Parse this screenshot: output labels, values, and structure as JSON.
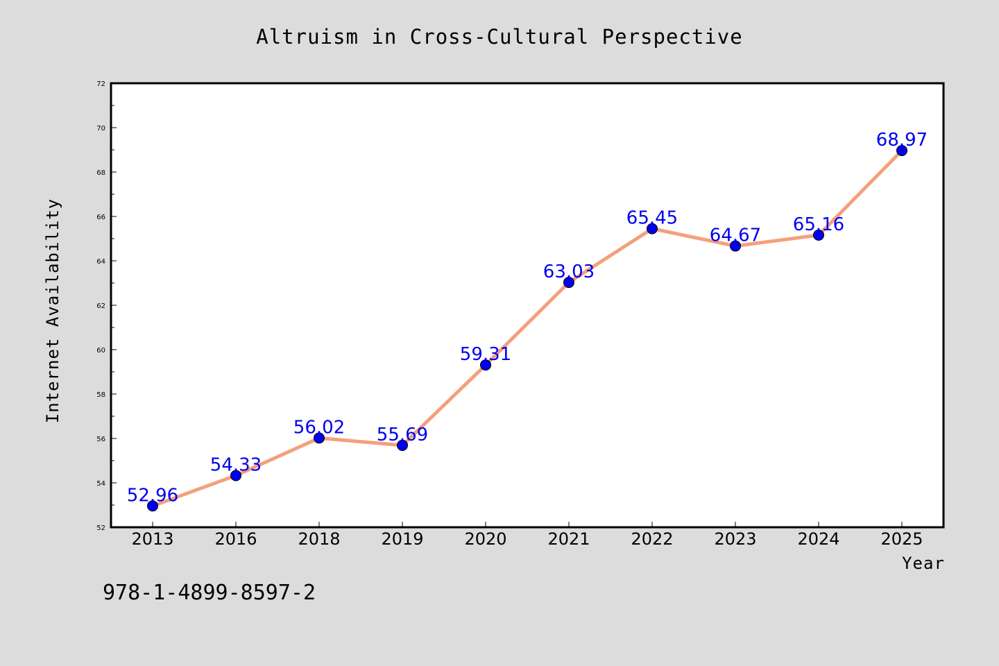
{
  "chart_data": {
    "type": "line",
    "title": "Altruism in Cross-Cultural Perspective",
    "xlabel": "Year",
    "ylabel": "Internet Availability",
    "categories": [
      "2013",
      "2016",
      "2018",
      "2019",
      "2020",
      "2021",
      "2022",
      "2023",
      "2024",
      "2025"
    ],
    "series": [
      {
        "values": [
          52.96,
          54.33,
          56.02,
          55.69,
          59.31,
          63.03,
          65.45,
          64.67,
          65.16,
          68.97
        ]
      }
    ],
    "data_labels": [
      "52.96",
      "54.33",
      "56.02",
      "55.69",
      "59.31",
      "63.03",
      "65.45",
      "64.67",
      "65.16",
      "68.97"
    ],
    "ylim": [
      52,
      72
    ],
    "yticks": [
      "52",
      "54",
      "56",
      "58",
      "60",
      "62",
      "64",
      "66",
      "68",
      "70",
      "72"
    ],
    "grid": false,
    "line_color": "#f4a07c",
    "marker_color": "#0000ee",
    "label_color": "#0000ee",
    "annotation": "978-1-4899-8597-2"
  }
}
